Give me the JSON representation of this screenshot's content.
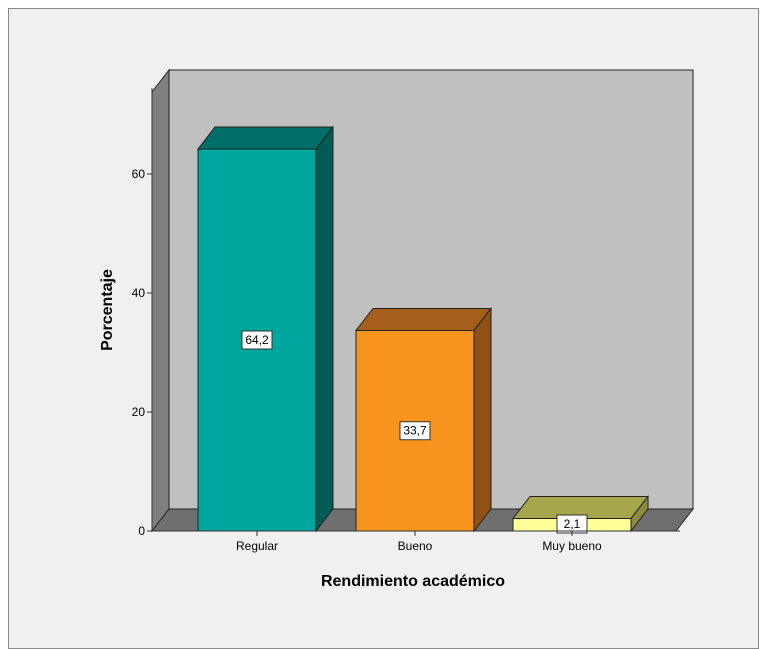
{
  "chart_data": {
    "type": "bar",
    "title": "",
    "xlabel": "Rendimiento académico",
    "ylabel": "Porcentaje",
    "categories": [
      "Regular",
      "Bueno",
      "Muy bueno"
    ],
    "values": [
      64.2,
      33.7,
      2.1
    ],
    "data_labels": [
      "64,2",
      "33,7",
      "2,1"
    ],
    "y_ticks": [
      "0",
      "20",
      "40",
      "60"
    ],
    "ylim": [
      0,
      75
    ],
    "grid": false,
    "style": "3d",
    "colors": {
      "bars": [
        "#00a79d",
        "#f7941d",
        "#ffff99"
      ],
      "bar_tops": [
        "#006f68",
        "#a65f1a",
        "#a6a64d"
      ],
      "bar_sides": [
        "#005b55",
        "#8f5214",
        "#8c8c3c"
      ],
      "back_wall": "#c0c0c0",
      "side_wall": "#7f7f7f",
      "floor": "#6f6f6f",
      "background": "#f0f0f0"
    }
  }
}
